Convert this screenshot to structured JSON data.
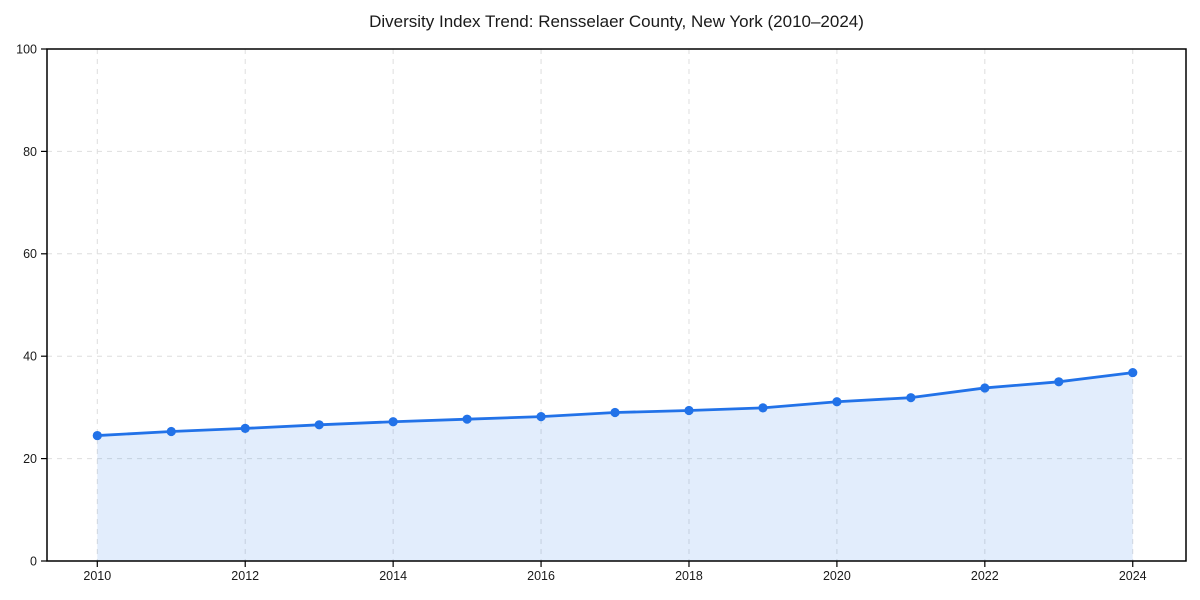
{
  "figure": {
    "background": "#ffffff"
  },
  "chart_data": {
    "type": "area",
    "title": "Diversity Index Trend: Rensselaer County, New York (2010–2024)",
    "xlabel": "",
    "ylabel": "",
    "x": [
      2010,
      2011,
      2012,
      2013,
      2014,
      2015,
      2016,
      2017,
      2018,
      2019,
      2020,
      2021,
      2022,
      2023,
      2024
    ],
    "series": [
      {
        "name": "Diversity Index",
        "values": [
          24.5,
          25.3,
          25.9,
          26.6,
          27.2,
          27.7,
          28.2,
          29.0,
          29.4,
          29.9,
          31.1,
          31.9,
          33.8,
          35.0,
          36.8
        ]
      }
    ],
    "xlim": [
      2009.32,
      2024.72
    ],
    "ylim": [
      0,
      100
    ],
    "xticks": [
      2010,
      2012,
      2014,
      2016,
      2018,
      2020,
      2022,
      2024
    ],
    "yticks": [
      0,
      20,
      40,
      60,
      80,
      100
    ],
    "grid": true,
    "grid_style": "dashed",
    "legend": false,
    "colors": {
      "line": "#2272e8",
      "marker": "#2272e8",
      "fill": "rgba(34,114,232,0.13)",
      "grid": "#dedede",
      "axis": "#000000",
      "tick_label": "#1a1a1a",
      "title": "#1a1a1a"
    }
  }
}
